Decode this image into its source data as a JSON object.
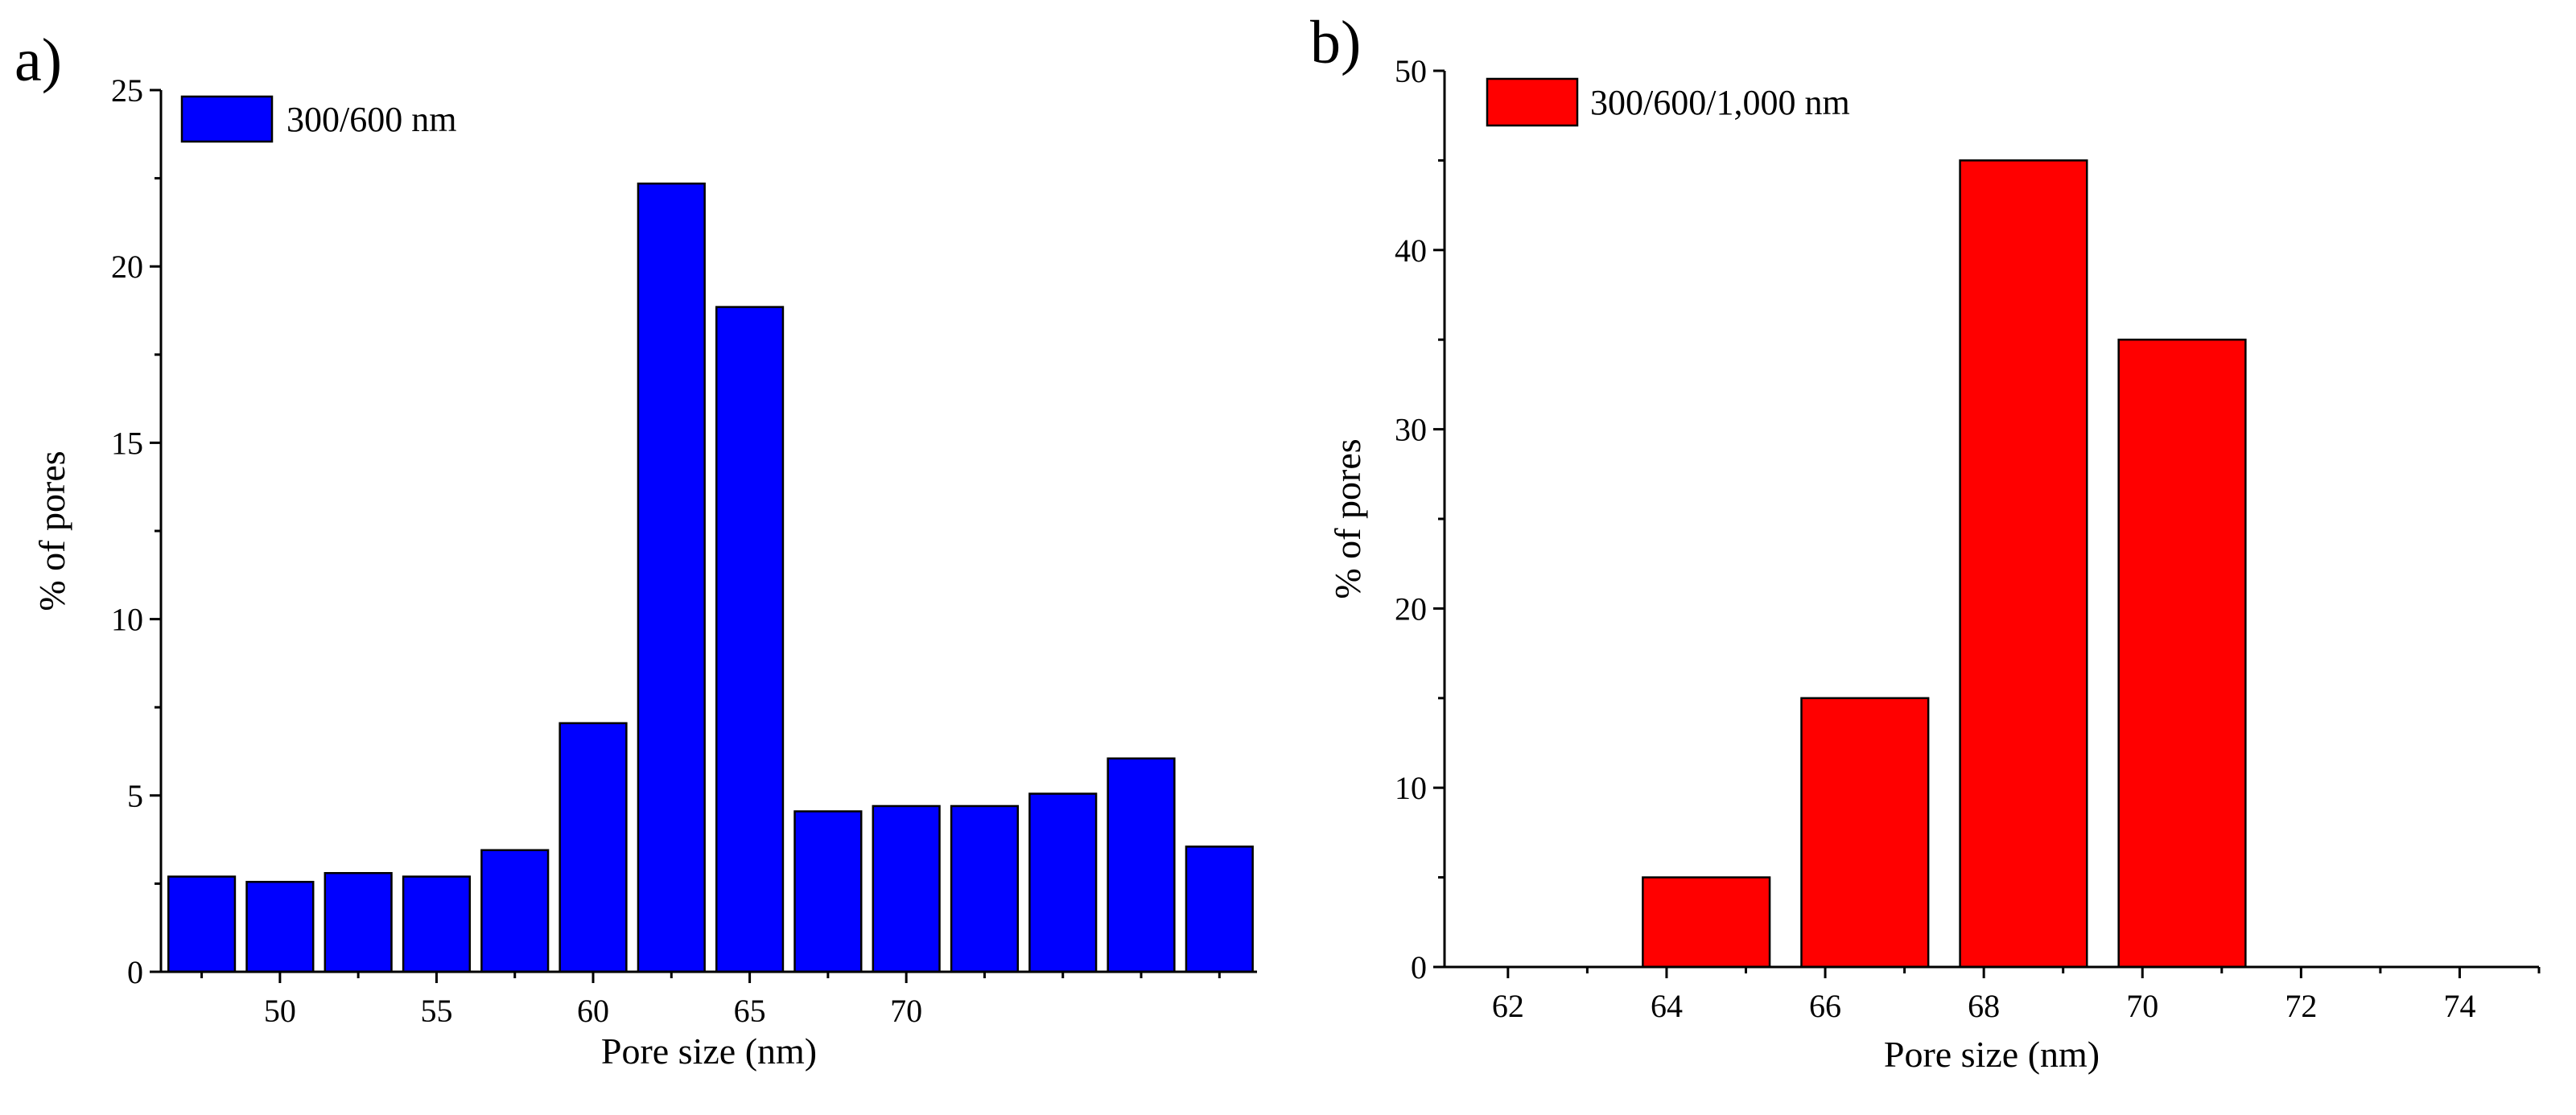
{
  "figure": {
    "colors": {
      "background": "#ffffff",
      "axis": "#000000"
    }
  },
  "chart_data": [
    {
      "panel_label": "a)",
      "type": "bar",
      "color": "#0000ff",
      "x": [
        47.5,
        50,
        52.5,
        55,
        57.5,
        60,
        62.5,
        65,
        67.5,
        70,
        72.5,
        75,
        77.5,
        80
      ],
      "categories": [
        47.5,
        50,
        52.5,
        55,
        57.5,
        60,
        62.5,
        65,
        67.5,
        70,
        72.5,
        75,
        77.5,
        80
      ],
      "bin_width": 2.5,
      "bar_fill_fraction": 0.85,
      "series": [
        {
          "name": "300/600 nm",
          "values": [
            2.7,
            2.55,
            2.8,
            2.7,
            3.45,
            7.05,
            22.35,
            18.85,
            4.55,
            4.7,
            4.7,
            5.05,
            6.05,
            3.55
          ]
        }
      ],
      "title": "",
      "xlabel": "Pore size (nm)",
      "ylabel": "% of pores",
      "xlim": [
        46.2,
        81.2
      ],
      "ylim": [
        0,
        25
      ],
      "xticks": [
        50,
        55,
        60,
        65,
        70
      ],
      "yticks": [
        0,
        5,
        10,
        15,
        20,
        25
      ],
      "legend": {
        "label": "300/600 nm",
        "position": "top-left"
      },
      "grid": false
    },
    {
      "panel_label": "b)",
      "type": "bar",
      "color": "#ff0000",
      "x": [
        64.5,
        66.5,
        68.5,
        70.5
      ],
      "categories": [
        64.5,
        66.5,
        68.5,
        70.5
      ],
      "bin_width": 2,
      "bar_fill_fraction": 0.8,
      "series": [
        {
          "name": "300/600/1,000 nm",
          "values": [
            5,
            15,
            45,
            35
          ]
        }
      ],
      "title": "",
      "xlabel": "Pore size (nm)",
      "ylabel": "% of pores",
      "xlim": [
        61.2,
        75
      ],
      "ylim": [
        0,
        50
      ],
      "xticks": [
        62,
        64,
        66,
        68,
        70,
        72,
        74
      ],
      "yticks": [
        0,
        10,
        20,
        30,
        40,
        50
      ],
      "legend": {
        "label": "300/600/1,000 nm",
        "position": "top-left"
      },
      "grid": false
    }
  ]
}
